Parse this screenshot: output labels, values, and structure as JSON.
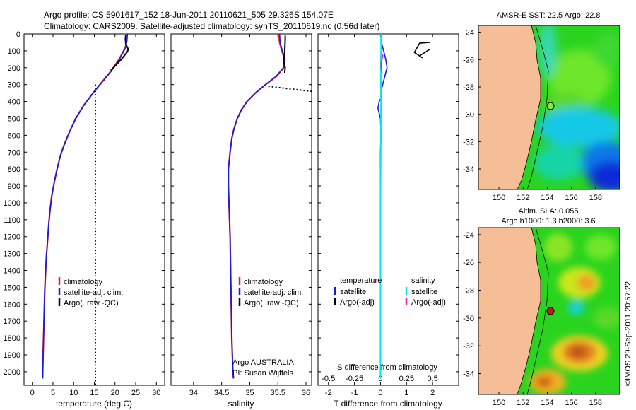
{
  "header": {
    "line1": "Argo profile: CS 5901617_152 18-Jun-2011 20110621_505 29.326S 154.07E",
    "line2": "Climatology: CARS2009. Satellite-adjusted climatology: synTS_20110619.nc (0.56d later)"
  },
  "colors": {
    "climatology": "#e0202a",
    "satellite": "#1a1adc",
    "argo": "#000000",
    "sat_salinity": "#00e8ee",
    "argo_salinity": "#e020c8",
    "land": "#f6be96"
  },
  "chart_data": [
    {
      "type": "line",
      "xlabel": "temperature (deg C)",
      "ylabel": "",
      "xlim": [
        -2,
        32
      ],
      "ylim": [
        2080,
        0
      ],
      "xticks": [
        0,
        5,
        10,
        15,
        20,
        25,
        30
      ],
      "yticks": [
        0,
        100,
        200,
        300,
        400,
        500,
        600,
        700,
        800,
        900,
        1000,
        1100,
        1200,
        1300,
        1400,
        1500,
        1600,
        1700,
        1800,
        1900,
        2000
      ],
      "legend": [
        "climatology",
        "satellite-adj. clim.",
        "Argo(..raw -QC)"
      ],
      "series": [
        {
          "name": "climatology",
          "x": [
            22.9,
            22.8,
            22.5,
            21,
            19,
            17,
            15,
            12.5,
            10.5,
            9,
            7.8,
            6.8,
            6,
            5.3,
            4.7,
            4.3,
            4,
            3.7,
            3.4,
            3.2,
            3,
            2.9,
            2.8,
            2.7,
            2.6,
            2.5
          ],
          "y": [
            0,
            40,
            80,
            150,
            220,
            280,
            340,
            420,
            500,
            580,
            650,
            720,
            800,
            880,
            960,
            1040,
            1120,
            1220,
            1320,
            1420,
            1520,
            1620,
            1720,
            1820,
            1920,
            2040
          ]
        },
        {
          "name": "satellite-adj. clim.",
          "x": [
            23,
            22.9,
            22.6,
            21.1,
            19.1,
            17.1,
            15,
            12.5,
            10.5,
            9,
            7.8,
            6.8,
            6,
            5.3,
            4.7,
            4.3,
            4,
            3.7,
            3.4,
            3.2,
            3,
            2.9,
            2.8,
            2.7,
            2.6,
            2.5
          ],
          "y": [
            0,
            40,
            80,
            150,
            220,
            280,
            340,
            420,
            500,
            580,
            650,
            720,
            800,
            880,
            960,
            1040,
            1120,
            1220,
            1320,
            1420,
            1520,
            1620,
            1720,
            1820,
            1920,
            2040
          ]
        },
        {
          "name": "Argo(..raw -QC)",
          "x": [
            22.6,
            22.5,
            22.6,
            23.2,
            23.0,
            22.2,
            21.2,
            20.0,
            19.0
          ],
          "y": [
            5,
            30,
            60,
            90,
            105,
            130,
            160,
            190,
            215
          ]
        }
      ],
      "dotted_x": 15.3
    },
    {
      "type": "line",
      "xlabel": "salinity",
      "xlim": [
        33.6,
        36.1
      ],
      "ylim": [
        2080,
        0
      ],
      "xticks": [
        34,
        34.5,
        35,
        35.5,
        36
      ],
      "legend": [
        "climatology",
        "satellite-adj. clim.",
        "Argo(..raw -QC)"
      ],
      "annotation": [
        "Argo AUSTRALIA",
        "PI: Susan Wijffels"
      ],
      "series": [
        {
          "name": "climatology",
          "x": [
            35.52,
            35.53,
            35.57,
            35.62,
            35.6,
            35.48,
            35.28,
            35.1,
            34.95,
            34.85,
            34.78,
            34.72,
            34.68,
            34.65,
            34.62,
            34.62,
            34.63,
            34.65,
            34.66,
            34.67,
            34.68,
            34.69,
            34.7,
            34.71
          ],
          "y": [
            0,
            50,
            100,
            150,
            200,
            250,
            300,
            350,
            400,
            450,
            500,
            560,
            620,
            700,
            800,
            900,
            1000,
            1200,
            1400,
            1600,
            1800,
            1900,
            2000,
            2040
          ]
        },
        {
          "name": "satellite-adj. clim.",
          "x": [
            35.53,
            35.54,
            35.58,
            35.63,
            35.6,
            35.47,
            35.28,
            35.1,
            34.95,
            34.85,
            34.78,
            34.72,
            34.68,
            34.65,
            34.62,
            34.62,
            34.63,
            34.65,
            34.66,
            34.67,
            34.68,
            34.69,
            34.7,
            34.71
          ],
          "y": [
            0,
            50,
            100,
            150,
            200,
            250,
            300,
            350,
            400,
            450,
            500,
            560,
            620,
            700,
            800,
            900,
            1000,
            1200,
            1400,
            1600,
            1800,
            1900,
            2000,
            2040
          ]
        },
        {
          "name": "Argo(..raw -QC)",
          "x": [
            35.63,
            35.63,
            35.62,
            35.6,
            35.63,
            35.62
          ],
          "y": [
            10,
            30,
            120,
            160,
            200,
            230
          ]
        }
      ],
      "dotted_segment": {
        "x": [
          35.33,
          36.1
        ],
        "y": [
          310,
          340
        ]
      }
    },
    {
      "type": "line",
      "xlabel": "T difference from climatology",
      "xlim": [
        -2.4,
        3
      ],
      "ylim": [
        2080,
        0
      ],
      "xticks": [
        -2,
        -1,
        0,
        1,
        2
      ],
      "top_xlabel": "S difference from climatology",
      "top_xticks": [
        -0.5,
        -0.25,
        0,
        0.25,
        0.5
      ],
      "top_xlim": [
        -0.6,
        0.75
      ],
      "legend_left_title": "temperature",
      "legend_right_title": "salinity",
      "legend": [
        "satellite",
        "Argo(-adj)",
        "satellite",
        "Argo(-adj)"
      ],
      "series": [
        {
          "name": "T satellite",
          "x": [
            0.05,
            0.05,
            0.05,
            0.12,
            0.2,
            0.25,
            0.15,
            0.05,
            0.02,
            -0.05,
            -0.1,
            0,
            0.02,
            0,
            0,
            0,
            0,
            0,
            0,
            0,
            0,
            0
          ],
          "y": [
            0,
            30,
            60,
            100,
            150,
            200,
            260,
            320,
            380,
            400,
            440,
            500,
            600,
            700,
            800,
            900,
            1000,
            1200,
            1400,
            1600,
            1800,
            2040
          ]
        },
        {
          "name": "T Argo",
          "x": [
            1.6,
            1.9,
            1.5,
            1.6,
            1.3,
            1.5,
            1.9
          ],
          "y": [
            120,
            90,
            130,
            140,
            110,
            55,
            50
          ]
        },
        {
          "name": "S satellite",
          "x": [
            0.02,
            0.02,
            0.01,
            0.02,
            0,
            0
          ],
          "y": [
            0,
            100,
            200,
            400,
            1000,
            2040
          ]
        },
        {
          "name": "S Argo",
          "x": [
            0.09,
            0.06,
            0.03,
            0.02,
            0.04,
            0.06
          ],
          "y": [
            120,
            150,
            170,
            190,
            210,
            230
          ]
        }
      ]
    },
    {
      "type": "heatmap",
      "title": "AMSR-E SST: 22.5 Argo: 22.8",
      "xticks": [
        150,
        152,
        154,
        156,
        158
      ],
      "yticks": [
        -24,
        -26,
        -28,
        -30,
        -32,
        -34
      ],
      "xlim": [
        148.3,
        160
      ],
      "ylim": [
        -35.5,
        -23.5
      ],
      "marker": {
        "lon": 154.07,
        "lat": -29.326
      }
    },
    {
      "type": "heatmap",
      "title": "Altim. SLA: 0.055",
      "subtitle": "Argo h1000: 1.3 h2000: 3.6",
      "xticks": [
        150,
        152,
        154,
        156,
        158
      ],
      "yticks": [
        -24,
        -26,
        -28,
        -30,
        -32,
        -34
      ],
      "xlim": [
        148.3,
        160
      ],
      "ylim": [
        -35.5,
        -23.5
      ],
      "marker": {
        "lon": 154.07,
        "lat": -29.326
      }
    }
  ],
  "footer": {
    "credit": "©IMOS 29-Sep-2011 20:57:22"
  }
}
